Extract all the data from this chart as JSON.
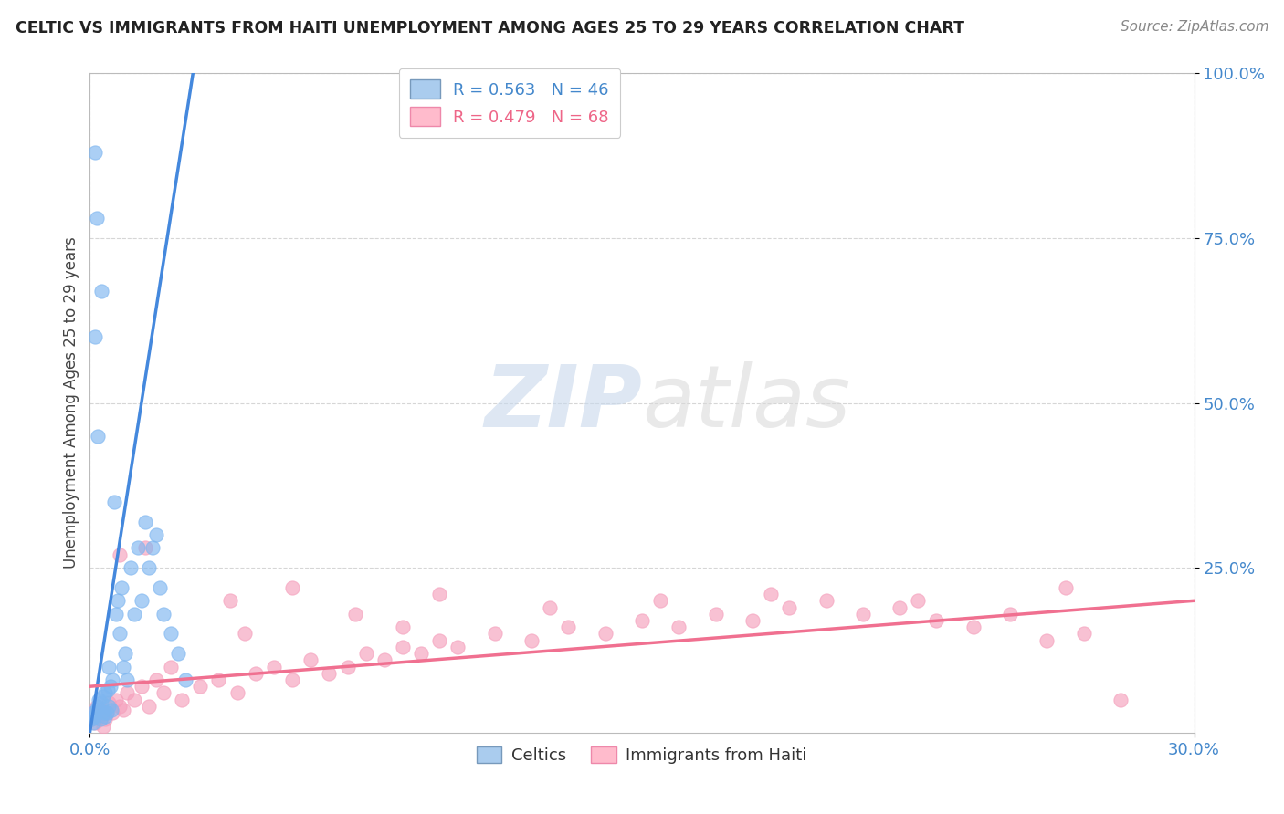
{
  "title": "CELTIC VS IMMIGRANTS FROM HAITI UNEMPLOYMENT AMONG AGES 25 TO 29 YEARS CORRELATION CHART",
  "source": "Source: ZipAtlas.com",
  "ylabel_label": "Unemployment Among Ages 25 to 29 years",
  "xlim": [
    0.0,
    30.0
  ],
  "ylim": [
    0.0,
    100.0
  ],
  "legend1_r": "0.563",
  "legend1_n": "46",
  "legend2_r": "0.479",
  "legend2_n": "68",
  "celtics_color": "#7EB6F0",
  "haiti_color": "#F5A0BC",
  "celtics_line_color": "#4488DD",
  "haiti_line_color": "#F07090",
  "watermark_zip": "ZIP",
  "watermark_atlas": "atlas",
  "celtics_x": [
    0.05,
    0.08,
    0.1,
    0.12,
    0.15,
    0.18,
    0.2,
    0.22,
    0.25,
    0.28,
    0.3,
    0.32,
    0.35,
    0.38,
    0.4,
    0.42,
    0.45,
    0.48,
    0.5,
    0.52,
    0.55,
    0.58,
    0.6,
    0.65,
    0.7,
    0.75,
    0.8,
    0.85,
    0.9,
    0.95,
    1.0,
    1.1,
    1.2,
    1.3,
    1.4,
    1.5,
    1.6,
    1.7,
    1.8,
    1.9,
    2.0,
    2.2,
    2.4,
    2.6,
    0.15,
    0.22
  ],
  "celtics_y": [
    2.0,
    1.5,
    3.0,
    2.5,
    88.0,
    78.0,
    3.5,
    4.0,
    5.0,
    2.0,
    67.0,
    4.5,
    5.5,
    3.0,
    6.0,
    2.5,
    3.0,
    6.5,
    10.0,
    4.0,
    7.0,
    3.5,
    8.0,
    35.0,
    18.0,
    20.0,
    15.0,
    22.0,
    10.0,
    12.0,
    8.0,
    25.0,
    18.0,
    28.0,
    20.0,
    32.0,
    25.0,
    28.0,
    30.0,
    22.0,
    18.0,
    15.0,
    12.0,
    8.0,
    60.0,
    45.0
  ],
  "haiti_x": [
    0.05,
    0.1,
    0.15,
    0.2,
    0.25,
    0.3,
    0.35,
    0.4,
    0.45,
    0.5,
    0.6,
    0.7,
    0.8,
    0.9,
    1.0,
    1.2,
    1.4,
    1.6,
    1.8,
    2.0,
    2.5,
    3.0,
    3.5,
    4.0,
    4.5,
    5.0,
    5.5,
    6.0,
    6.5,
    7.0,
    7.5,
    8.0,
    8.5,
    9.0,
    9.5,
    10.0,
    11.0,
    12.0,
    13.0,
    14.0,
    15.0,
    16.0,
    17.0,
    18.0,
    19.0,
    20.0,
    21.0,
    22.0,
    23.0,
    24.0,
    25.0,
    26.0,
    27.0,
    28.0,
    0.8,
    1.5,
    2.2,
    3.8,
    5.5,
    7.2,
    9.5,
    12.5,
    15.5,
    18.5,
    22.5,
    26.5,
    4.2,
    8.5
  ],
  "haiti_y": [
    2.0,
    3.0,
    1.5,
    4.0,
    2.5,
    3.5,
    1.0,
    2.0,
    3.0,
    4.5,
    3.0,
    5.0,
    4.0,
    3.5,
    6.0,
    5.0,
    7.0,
    4.0,
    8.0,
    6.0,
    5.0,
    7.0,
    8.0,
    6.0,
    9.0,
    10.0,
    8.0,
    11.0,
    9.0,
    10.0,
    12.0,
    11.0,
    13.0,
    12.0,
    14.0,
    13.0,
    15.0,
    14.0,
    16.0,
    15.0,
    17.0,
    16.0,
    18.0,
    17.0,
    19.0,
    20.0,
    18.0,
    19.0,
    17.0,
    16.0,
    18.0,
    14.0,
    15.0,
    5.0,
    27.0,
    28.0,
    10.0,
    20.0,
    22.0,
    18.0,
    21.0,
    19.0,
    20.0,
    21.0,
    20.0,
    22.0,
    15.0,
    16.0
  ],
  "celtic_trend_x0": 0.0,
  "celtic_trend_y0": 0.0,
  "celtic_trend_x1": 2.8,
  "celtic_trend_y1": 100.0,
  "haiti_trend_x0": 0.0,
  "haiti_trend_y0": 7.0,
  "haiti_trend_x1": 30.0,
  "haiti_trend_y1": 20.0
}
